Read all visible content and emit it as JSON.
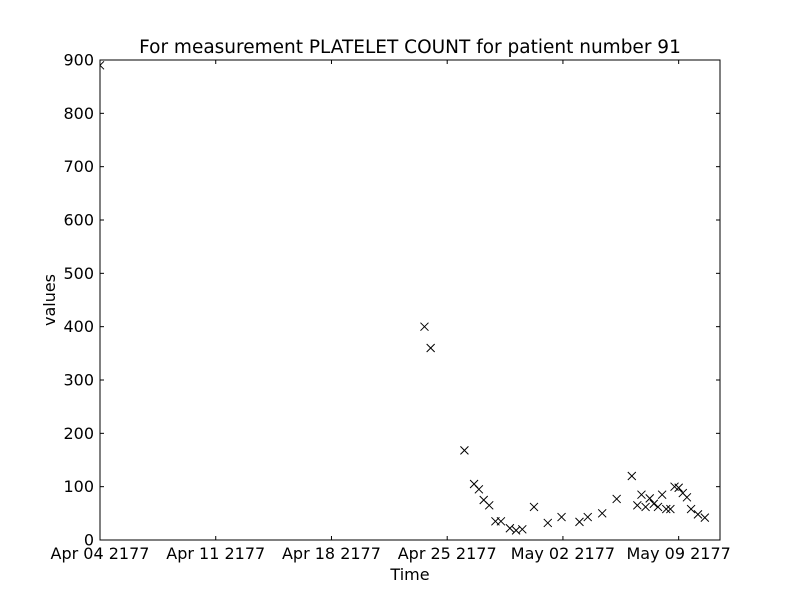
{
  "chart_data": {
    "type": "scatter",
    "title": "For measurement PLATELET COUNT for patient number 91",
    "xlabel": "Time",
    "ylabel": "values",
    "xlim": [
      "2177-04-04",
      "2177-05-11T12:00"
    ],
    "ylim": [
      0,
      900
    ],
    "grid": false,
    "marker": "x",
    "marker_color": "#000000",
    "x_ticks": [
      {
        "date": "2177-04-04",
        "label": "Apr 04 2177"
      },
      {
        "date": "2177-04-11",
        "label": "Apr 11 2177"
      },
      {
        "date": "2177-04-18",
        "label": "Apr 18 2177"
      },
      {
        "date": "2177-04-25",
        "label": "Apr 25 2177"
      },
      {
        "date": "2177-05-02",
        "label": "May 02 2177"
      },
      {
        "date": "2177-05-09",
        "label": "May 09 2177"
      }
    ],
    "y_ticks": [
      0,
      100,
      200,
      300,
      400,
      500,
      600,
      700,
      800,
      900
    ],
    "points": [
      {
        "x": "2177-04-04T00:00",
        "y": 890
      },
      {
        "x": "2177-04-23T15:00",
        "y": 400
      },
      {
        "x": "2177-04-24T00:00",
        "y": 360
      },
      {
        "x": "2177-04-26T01:00",
        "y": 168
      },
      {
        "x": "2177-04-26T15:00",
        "y": 105
      },
      {
        "x": "2177-04-26T22:00",
        "y": 95
      },
      {
        "x": "2177-04-27T05:00",
        "y": 75
      },
      {
        "x": "2177-04-27T13:00",
        "y": 65
      },
      {
        "x": "2177-04-27T22:00",
        "y": 35
      },
      {
        "x": "2177-04-28T06:00",
        "y": 35
      },
      {
        "x": "2177-04-28T19:00",
        "y": 22
      },
      {
        "x": "2177-04-29T04:00",
        "y": 18
      },
      {
        "x": "2177-04-29T13:00",
        "y": 20
      },
      {
        "x": "2177-04-30T06:00",
        "y": 62
      },
      {
        "x": "2177-05-01T02:00",
        "y": 32
      },
      {
        "x": "2177-05-01T22:00",
        "y": 43
      },
      {
        "x": "2177-05-03T00:00",
        "y": 34
      },
      {
        "x": "2177-05-03T12:00",
        "y": 43
      },
      {
        "x": "2177-05-04T09:00",
        "y": 50
      },
      {
        "x": "2177-05-05T06:00",
        "y": 77
      },
      {
        "x": "2177-05-06T04:00",
        "y": 120
      },
      {
        "x": "2177-05-06T12:00",
        "y": 65
      },
      {
        "x": "2177-05-06T18:00",
        "y": 85
      },
      {
        "x": "2177-05-07T00:00",
        "y": 62
      },
      {
        "x": "2177-05-07T06:00",
        "y": 78
      },
      {
        "x": "2177-05-07T12:00",
        "y": 68
      },
      {
        "x": "2177-05-07T18:00",
        "y": 62
      },
      {
        "x": "2177-05-08T00:00",
        "y": 85
      },
      {
        "x": "2177-05-08T06:00",
        "y": 58
      },
      {
        "x": "2177-05-08T12:00",
        "y": 58
      },
      {
        "x": "2177-05-08T18:00",
        "y": 100
      },
      {
        "x": "2177-05-09T00:00",
        "y": 98
      },
      {
        "x": "2177-05-09T06:00",
        "y": 88
      },
      {
        "x": "2177-05-09T12:00",
        "y": 80
      },
      {
        "x": "2177-05-09T18:00",
        "y": 58
      },
      {
        "x": "2177-05-10T04:00",
        "y": 48
      },
      {
        "x": "2177-05-10T14:00",
        "y": 42
      }
    ]
  }
}
